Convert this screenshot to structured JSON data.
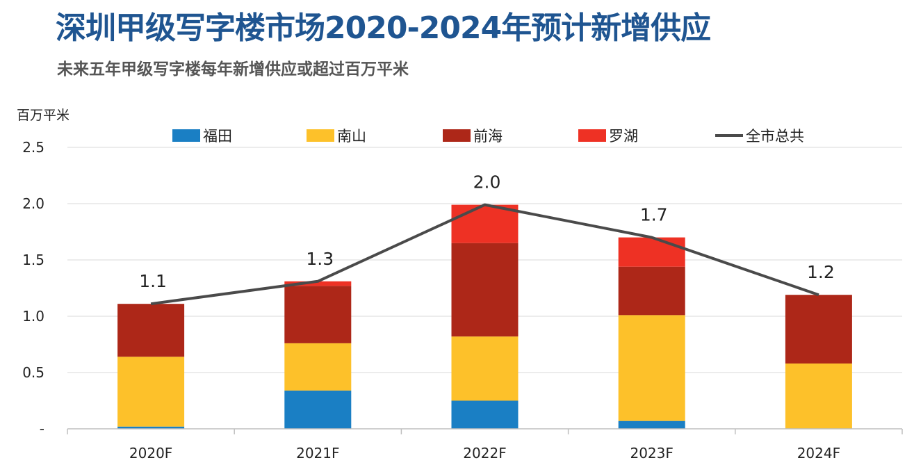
{
  "header": {
    "title": "深圳甲级写字楼市场2020-2024年预计新增供应",
    "subtitle": "未来五年甲级写字楼每年新增供应或超过百万平米"
  },
  "chart_data": {
    "type": "bar",
    "stacked": true,
    "unit_label": "百万平米",
    "categories": [
      "2020F",
      "2021F",
      "2022F",
      "2023F",
      "2024F"
    ],
    "ylim": [
      0,
      2.5
    ],
    "y_ticks": [
      "-",
      "0.5",
      "1.0",
      "1.5",
      "2.0",
      "2.5"
    ],
    "grid": true,
    "legend_position": "top",
    "series": [
      {
        "name": "福田",
        "color": "#1a7fc4",
        "values": [
          0.02,
          0.34,
          0.25,
          0.07,
          0.0
        ]
      },
      {
        "name": "南山",
        "color": "#fdc12a",
        "values": [
          0.62,
          0.42,
          0.57,
          0.94,
          0.58
        ]
      },
      {
        "name": "前海",
        "color": "#ad2718",
        "values": [
          0.47,
          0.51,
          0.83,
          0.43,
          0.61
        ]
      },
      {
        "name": "罗湖",
        "color": "#ee3124",
        "values": [
          0.0,
          0.04,
          0.34,
          0.26,
          0.0
        ]
      }
    ],
    "total_line": {
      "name": "全市总共",
      "color": "#4a4a4a",
      "values": [
        1.11,
        1.31,
        1.99,
        1.7,
        1.19
      ],
      "labels": [
        "1.1",
        "1.3",
        "2.0",
        "1.7",
        "1.2"
      ]
    }
  }
}
